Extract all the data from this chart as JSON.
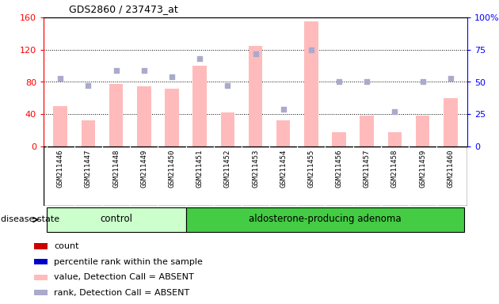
{
  "title": "GDS2860 / 237473_at",
  "samples": [
    "GSM211446",
    "GSM211447",
    "GSM211448",
    "GSM211449",
    "GSM211450",
    "GSM211451",
    "GSM211452",
    "GSM211453",
    "GSM211454",
    "GSM211455",
    "GSM211456",
    "GSM211457",
    "GSM211458",
    "GSM211459",
    "GSM211460"
  ],
  "bar_values": [
    50,
    32,
    78,
    75,
    72,
    100,
    42,
    125,
    32,
    155,
    18,
    38,
    18,
    38,
    60
  ],
  "scatter_values_pct": [
    53,
    47,
    59,
    59,
    54,
    68,
    47,
    72,
    29,
    75,
    50,
    50,
    27,
    50,
    53
  ],
  "bar_color": "#ffbbbb",
  "scatter_color": "#aaaacc",
  "bar_ylim": [
    0,
    160
  ],
  "scatter_ylim": [
    0,
    100
  ],
  "yticks_left": [
    0,
    40,
    80,
    120,
    160
  ],
  "yticks_right": [
    0,
    25,
    50,
    75,
    100
  ],
  "ytick_labels_right": [
    "0",
    "25",
    "50",
    "75",
    "100%"
  ],
  "control_count": 5,
  "group_color_control": "#ccffcc",
  "group_color_adenoma": "#44cc44",
  "disease_state_label": "disease state",
  "legend_items": [
    {
      "label": "count",
      "color": "#cc0000"
    },
    {
      "label": "percentile rank within the sample",
      "color": "#0000cc"
    },
    {
      "label": "value, Detection Call = ABSENT",
      "color": "#ffbbbb"
    },
    {
      "label": "rank, Detection Call = ABSENT",
      "color": "#aaaacc"
    }
  ],
  "grid_yticks": [
    40,
    80,
    120
  ],
  "background_color": "#ffffff",
  "xtick_bg_color": "#cccccc"
}
